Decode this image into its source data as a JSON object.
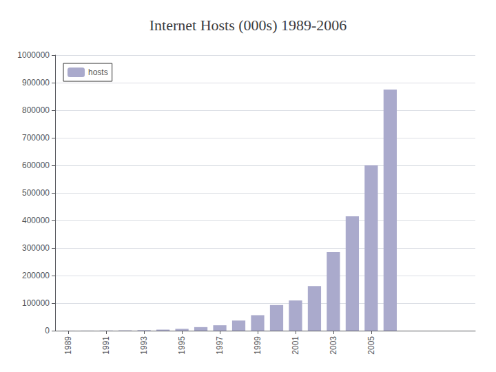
{
  "chart_data": {
    "type": "bar",
    "title": "Internet Hosts (000s) 1989-2006",
    "x": [
      1989,
      1990,
      1991,
      1992,
      1993,
      1994,
      1995,
      1996,
      1997,
      1998,
      1999,
      2000,
      2001,
      2002,
      2003,
      2004,
      2005,
      2006
    ],
    "series": [
      {
        "name": "hosts",
        "color": "#aaaacc",
        "values": [
          159,
          313,
          617,
          1136,
          2056,
          3864,
          6642,
          12881,
          19540,
          36739,
          56218,
          93047,
          109574,
          162128,
          285139,
          415000,
          600000,
          875000
        ]
      }
    ],
    "xlim": [
      1988.3,
      2010.5
    ],
    "xticks": [
      1989,
      1991,
      1993,
      1995,
      1997,
      1999,
      2001,
      2003,
      2005
    ],
    "ylim": [
      0,
      1000000
    ],
    "yticks": [
      0,
      100000,
      200000,
      300000,
      400000,
      500000,
      600000,
      700000,
      800000,
      900000,
      1000000
    ],
    "grid": true,
    "legend": "upper left"
  }
}
